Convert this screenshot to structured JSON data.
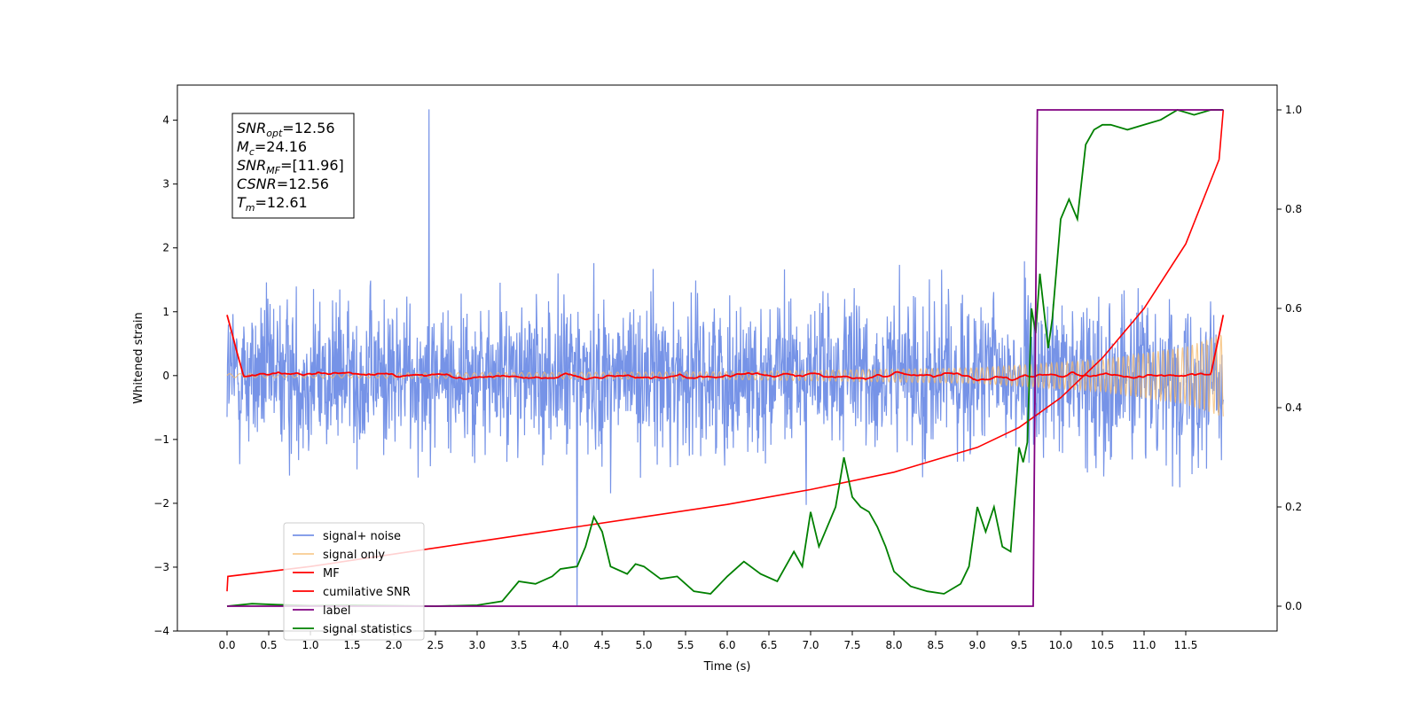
{
  "chart_data": {
    "type": "line",
    "xlabel": "Time (s)",
    "ylabel_left": "Whitened strain",
    "ylabel_right": "",
    "xlim": [
      -0.6,
      12.6
    ],
    "ylim_left": [
      -4,
      4.55
    ],
    "ylim_right": [
      -0.05,
      1.05
    ],
    "x_ticks": [
      "0.0",
      "0.5",
      "1.0",
      "1.5",
      "2.0",
      "2.5",
      "3.0",
      "3.5",
      "4.0",
      "4.5",
      "5.0",
      "5.5",
      "6.0",
      "6.5",
      "7.0",
      "7.5",
      "8.0",
      "8.5",
      "9.0",
      "9.5",
      "10.0",
      "10.5",
      "11.0",
      "11.5"
    ],
    "y_ticks_left": [
      "−4",
      "−3",
      "−2",
      "−1",
      "0",
      "1",
      "2",
      "3",
      "4"
    ],
    "y_ticks_right": [
      "0.0",
      "0.2",
      "0.4",
      "0.6",
      "0.8",
      "1.0"
    ],
    "grid": false,
    "legend_position": "lower-left",
    "colors": {
      "noise": "#6f8de6",
      "signal": "#f5b96b",
      "mf": "#ff0000",
      "csnr": "#ff0000",
      "label": "#800080",
      "stats": "#008000"
    },
    "info_box": {
      "snr_opt": {
        "sym": "SNR",
        "sub": "opt",
        "value": "=12.56"
      },
      "mc": {
        "sym": "M",
        "sub": "c",
        "value": "=24.16"
      },
      "snr_mf": {
        "sym": "SNR",
        "sub": "MF",
        "value": "=[11.96]"
      },
      "csnr": {
        "sym": "CSNR",
        "value": "=12.56"
      },
      "tm": {
        "sym": "T",
        "sub": "m",
        "value": "=12.61"
      }
    },
    "series": [
      {
        "name": "signal+ noise",
        "axis": "left",
        "description": "whitened noisy strain, roughly ±1 with spikes to about ±3.5 over 0–11.95 s",
        "x_range": [
          0,
          11.95
        ],
        "typical_amplitude": 1.0,
        "max": 4.17,
        "min": -3.6
      },
      {
        "name": "signal only",
        "axis": "left",
        "description": "chirp whose amplitude grows from near 0 to about 0.6 at 11.95 s",
        "x_range": [
          0,
          11.95
        ],
        "envelope": [
          [
            0,
            0.03
          ],
          [
            6,
            0.06
          ],
          [
            9,
            0.12
          ],
          [
            10.5,
            0.25
          ],
          [
            11.5,
            0.45
          ],
          [
            11.95,
            0.65
          ]
        ]
      },
      {
        "name": "MF",
        "axis": "left",
        "description": "matched filter output near 0, peaking near 0.95 at both ends",
        "x_range": [
          0,
          11.95
        ],
        "endpoints": [
          0.95,
          0.95
        ]
      },
      {
        "name": "cumilative SNR",
        "axis": "right",
        "x": [
          0.0,
          0.01,
          1,
          2,
          3,
          4,
          5,
          6,
          7,
          8,
          9,
          9.5,
          10,
          10.5,
          11,
          11.5,
          11.9,
          11.95
        ],
        "y": [
          0.03,
          0.06,
          0.08,
          0.105,
          0.13,
          0.155,
          0.18,
          0.205,
          0.235,
          0.27,
          0.32,
          0.36,
          0.42,
          0.5,
          0.6,
          0.73,
          0.9,
          1.0
        ]
      },
      {
        "name": "label",
        "axis": "right",
        "x": [
          0,
          9.67,
          9.72,
          11.95
        ],
        "y": [
          0,
          0,
          1,
          1
        ]
      },
      {
        "name": "signal statistics",
        "axis": "right",
        "x": [
          0,
          0.3,
          0.6,
          1.0,
          1.5,
          2.0,
          2.5,
          3.0,
          3.3,
          3.5,
          3.7,
          3.9,
          4.0,
          4.2,
          4.3,
          4.4,
          4.5,
          4.6,
          4.8,
          4.9,
          5.0,
          5.2,
          5.4,
          5.6,
          5.8,
          6.0,
          6.2,
          6.4,
          6.6,
          6.8,
          6.9,
          7.0,
          7.1,
          7.3,
          7.4,
          7.5,
          7.6,
          7.7,
          7.8,
          7.9,
          8.0,
          8.2,
          8.4,
          8.6,
          8.8,
          8.9,
          9.0,
          9.1,
          9.2,
          9.3,
          9.4,
          9.5,
          9.55,
          9.6,
          9.65,
          9.7,
          9.75,
          9.85,
          9.9,
          10.0,
          10.1,
          10.2,
          10.3,
          10.4,
          10.5,
          10.6,
          10.8,
          11.0,
          11.2,
          11.4,
          11.6,
          11.8,
          11.95
        ],
        "y": [
          0.0,
          0.005,
          0.003,
          0.001,
          0.002,
          0.001,
          0.0,
          0.002,
          0.01,
          0.05,
          0.045,
          0.06,
          0.075,
          0.08,
          0.12,
          0.18,
          0.15,
          0.08,
          0.065,
          0.085,
          0.08,
          0.055,
          0.06,
          0.03,
          0.025,
          0.06,
          0.09,
          0.065,
          0.05,
          0.11,
          0.08,
          0.19,
          0.12,
          0.2,
          0.3,
          0.22,
          0.2,
          0.19,
          0.16,
          0.12,
          0.07,
          0.04,
          0.03,
          0.025,
          0.045,
          0.08,
          0.2,
          0.15,
          0.2,
          0.12,
          0.11,
          0.32,
          0.29,
          0.33,
          0.6,
          0.55,
          0.67,
          0.52,
          0.58,
          0.78,
          0.82,
          0.78,
          0.93,
          0.96,
          0.97,
          0.97,
          0.96,
          0.97,
          0.98,
          1.0,
          0.99,
          1.0,
          1.0
        ]
      }
    ]
  }
}
